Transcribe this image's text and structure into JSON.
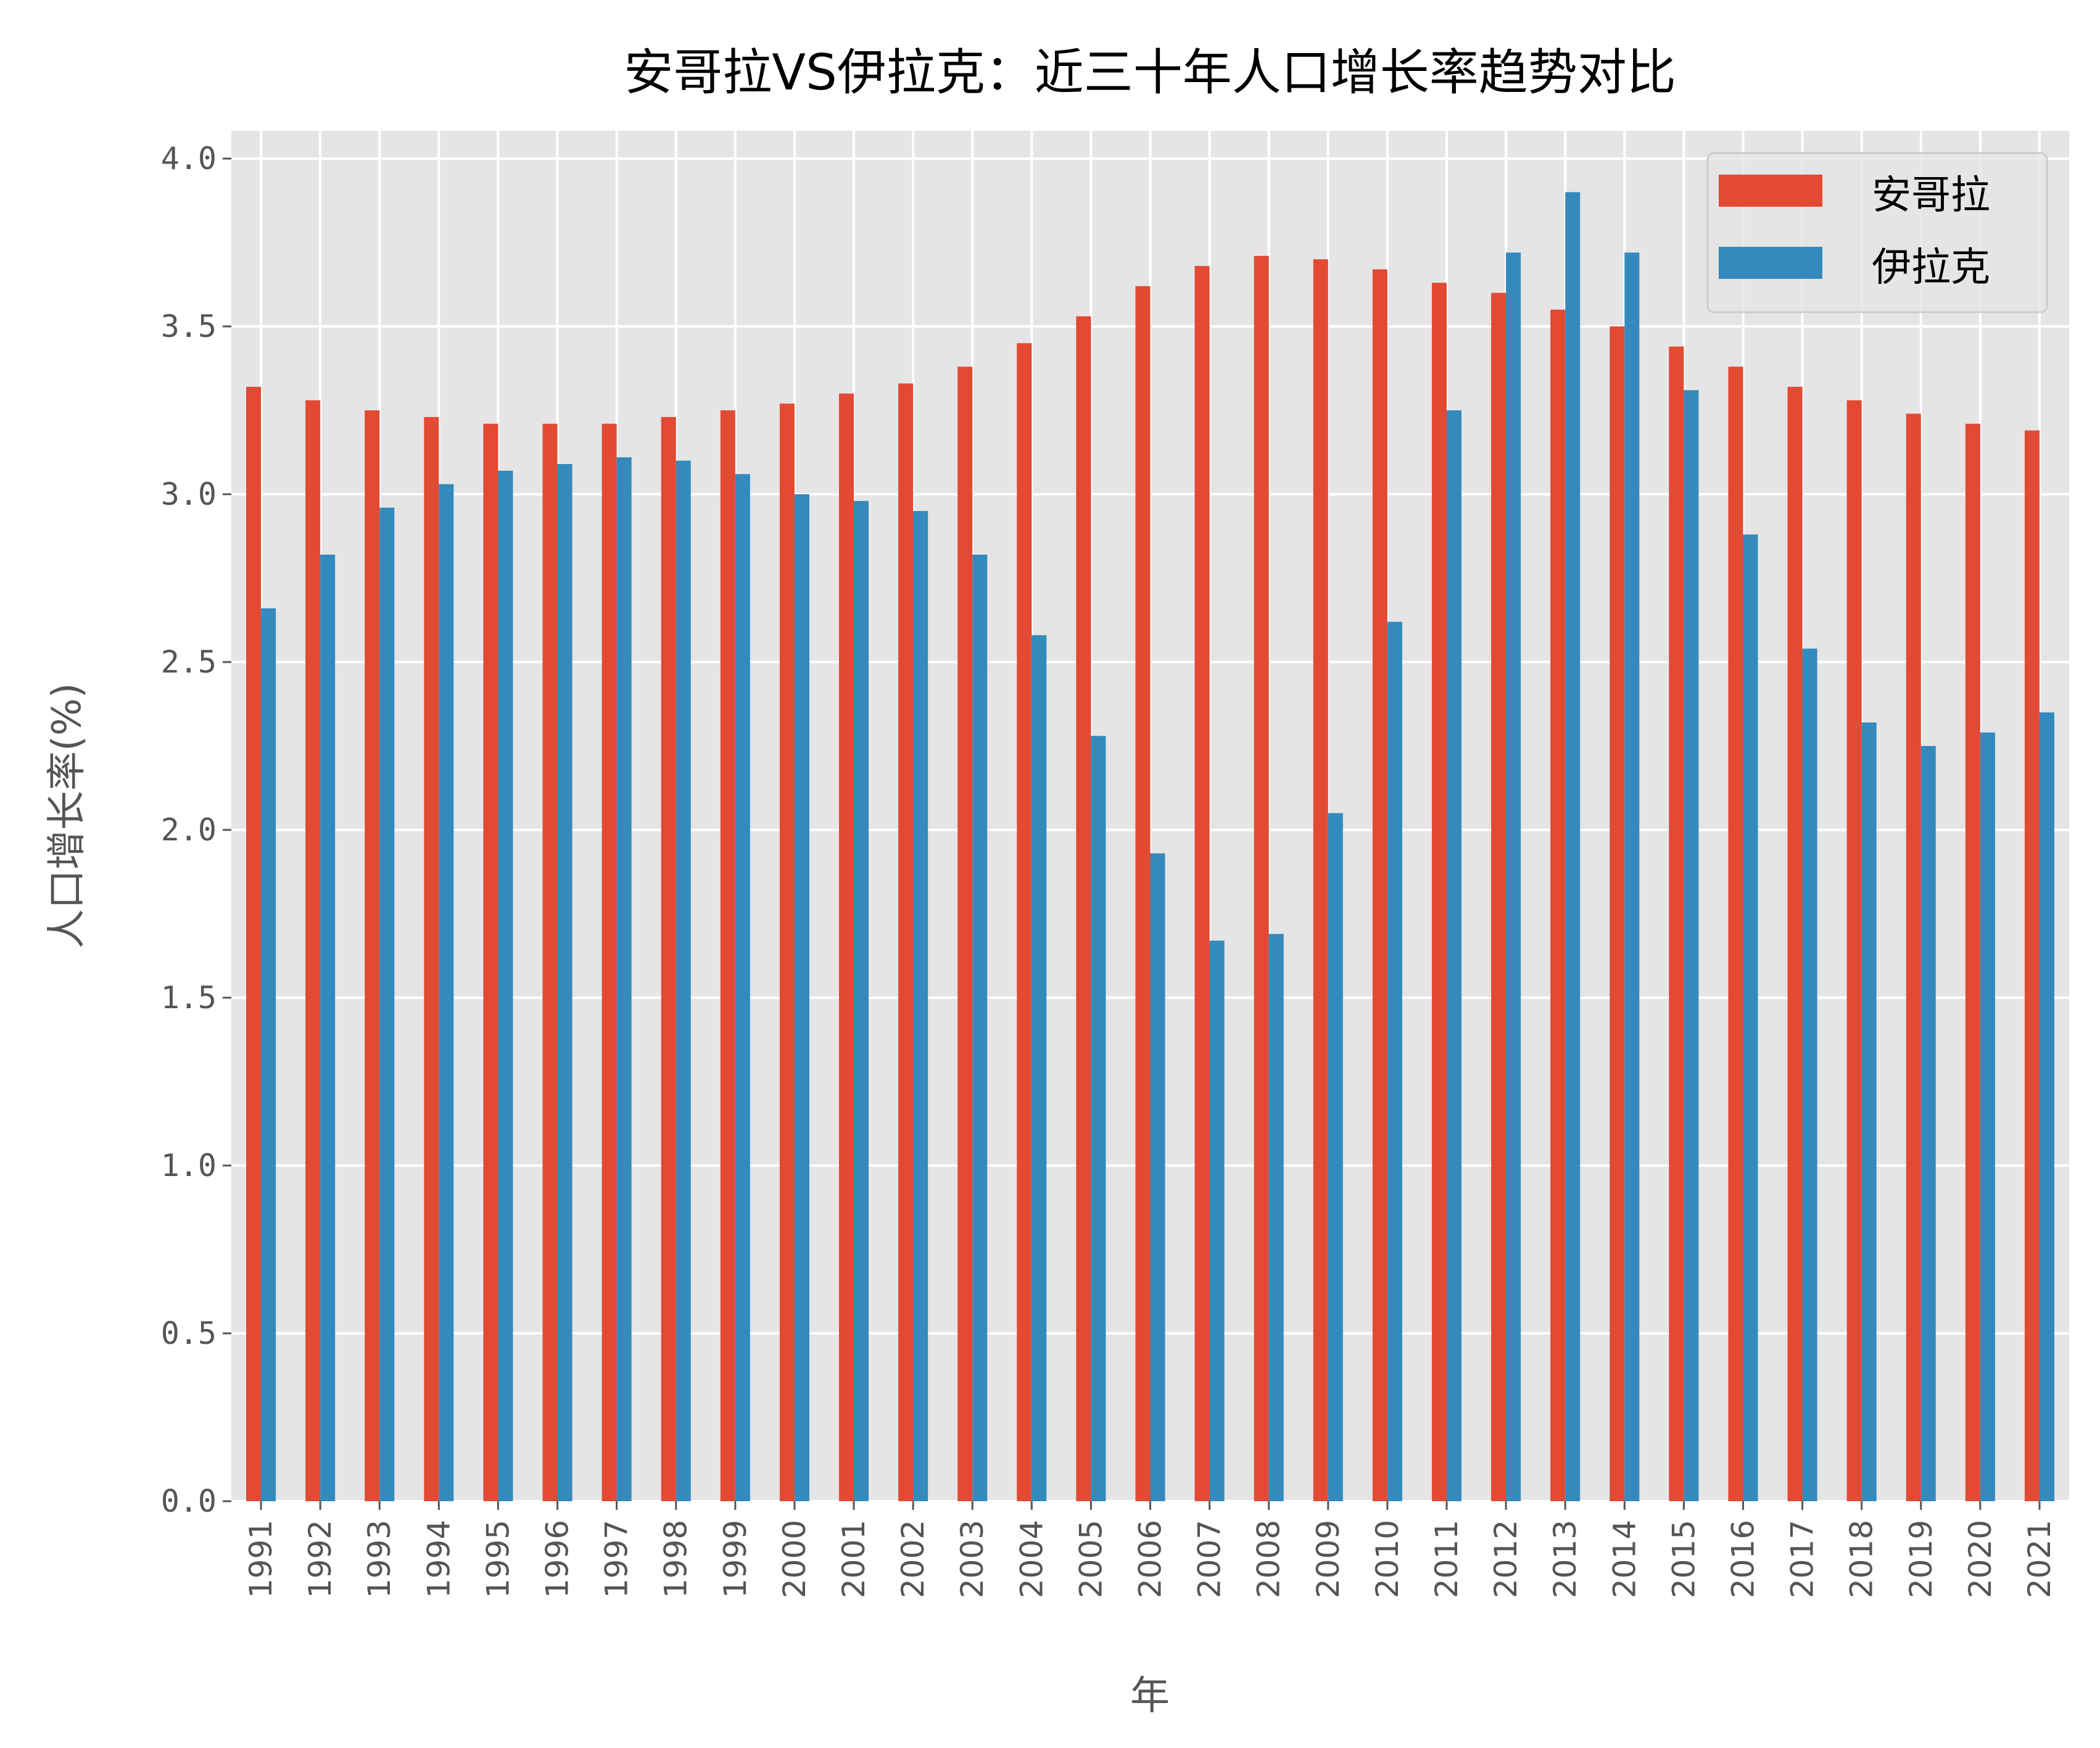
{
  "chart_data": {
    "type": "bar",
    "title": "安哥拉VS伊拉克：近三十年人口增长率趋势对比",
    "xlabel": "年",
    "ylabel": "人口增长率(%)",
    "ylim": [
      0,
      4.08
    ],
    "yticks": [
      "0.0",
      "0.5",
      "1.0",
      "1.5",
      "2.0",
      "2.5",
      "3.0",
      "3.5",
      "4.0"
    ],
    "grid": true,
    "legend_placement": "top-right",
    "categories": [
      "1991",
      "1992",
      "1993",
      "1994",
      "1995",
      "1996",
      "1997",
      "1998",
      "1999",
      "2000",
      "2001",
      "2002",
      "2003",
      "2004",
      "2005",
      "2006",
      "2007",
      "2008",
      "2009",
      "2010",
      "2011",
      "2012",
      "2013",
      "2014",
      "2015",
      "2016",
      "2017",
      "2018",
      "2019",
      "2020",
      "2021"
    ],
    "series": [
      {
        "name": "安哥拉",
        "color": "#E24A33",
        "values": [
          3.32,
          3.28,
          3.25,
          3.23,
          3.21,
          3.21,
          3.21,
          3.23,
          3.25,
          3.27,
          3.3,
          3.33,
          3.38,
          3.45,
          3.53,
          3.62,
          3.68,
          3.71,
          3.7,
          3.67,
          3.63,
          3.6,
          3.55,
          3.5,
          3.44,
          3.38,
          3.32,
          3.28,
          3.24,
          3.21,
          3.19
        ]
      },
      {
        "name": "伊拉克",
        "color": "#348ABD",
        "values": [
          2.66,
          2.82,
          2.96,
          3.03,
          3.07,
          3.09,
          3.11,
          3.1,
          3.06,
          3.0,
          2.98,
          2.95,
          2.82,
          2.58,
          2.28,
          1.93,
          1.67,
          1.69,
          2.05,
          2.62,
          3.25,
          3.72,
          3.9,
          3.72,
          3.31,
          2.88,
          2.54,
          2.32,
          2.25,
          2.29,
          2.35
        ]
      }
    ]
  }
}
